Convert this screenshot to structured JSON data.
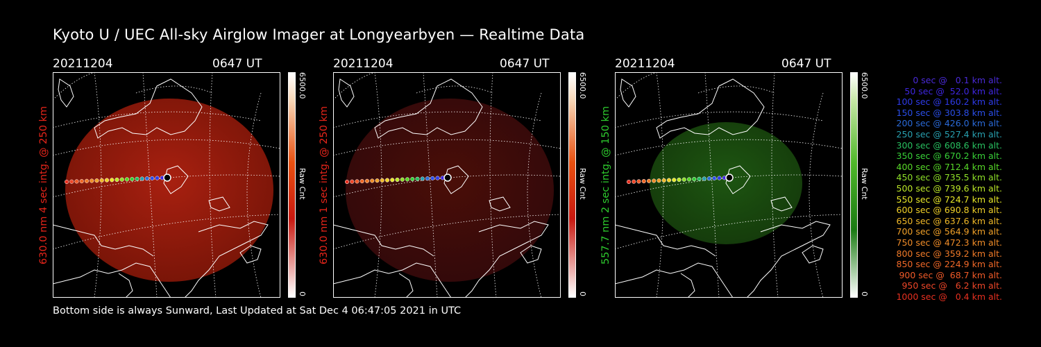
{
  "title": "Kyoto U / UEC All-sky Airglow Imager at Longyearbyen — Realtime Data",
  "footer": "Bottom side is always Sunward, Last Updated at Sat Dec  4 06:47:05 2021 in UTC",
  "panels": [
    {
      "date": "20211204",
      "time": "0647 UT",
      "ylabel": "630.0 nm 4 sec intg. @ 250 km",
      "label_color": "#e8251a",
      "cbar_max": "6500.0",
      "cbar_min": "0",
      "cbar_unit": "Raw Cnt",
      "colormap": "red"
    },
    {
      "date": "20211204",
      "time": "0647 UT",
      "ylabel": "630.0 nm 1 sec intg. @ 250 km",
      "label_color": "#e8251a",
      "cbar_max": "6500.0",
      "cbar_min": "0",
      "cbar_unit": "Raw Cnt",
      "colormap": "red"
    },
    {
      "date": "20211204",
      "time": "0647 UT",
      "ylabel": "557.7 nm 2 sec intg. @ 150 km",
      "label_color": "#2ecc2e",
      "cbar_max": "6500.0",
      "cbar_min": "0",
      "cbar_unit": "Raw Cnt",
      "colormap": "green"
    }
  ],
  "legend": [
    {
      "text": "   0 sec @   0.1 km alt.",
      "color": "#4a2ad8"
    },
    {
      "text": "  50 sec @  52.0 km alt.",
      "color": "#3e26e0"
    },
    {
      "text": " 100 sec @ 160.2 km alt.",
      "color": "#2e3ae8"
    },
    {
      "text": " 150 sec @ 303.8 km alt.",
      "color": "#2a4ee8"
    },
    {
      "text": " 200 sec @ 426.0 km alt.",
      "color": "#2a6ad8"
    },
    {
      "text": " 250 sec @ 527.4 km alt.",
      "color": "#28a0b0"
    },
    {
      "text": " 300 sec @ 608.6 km alt.",
      "color": "#28c060"
    },
    {
      "text": " 350 sec @ 670.2 km alt.",
      "color": "#38d038"
    },
    {
      "text": " 400 sec @ 712.4 km alt.",
      "color": "#58d828"
    },
    {
      "text": " 450 sec @ 735.5 km alt.",
      "color": "#8ee028"
    },
    {
      "text": " 500 sec @ 739.6 km alt.",
      "color": "#bce828"
    },
    {
      "text": " 550 sec @ 724.7 km alt.",
      "color": "#e8e828"
    },
    {
      "text": " 600 sec @ 690.8 km alt.",
      "color": "#f0d028"
    },
    {
      "text": " 650 sec @ 637.6 km alt.",
      "color": "#f0b828"
    },
    {
      "text": " 700 sec @ 564.9 km alt.",
      "color": "#f0a028"
    },
    {
      "text": " 750 sec @ 472.3 km alt.",
      "color": "#f08c28"
    },
    {
      "text": " 800 sec @ 359.2 km alt.",
      "color": "#f07a28"
    },
    {
      "text": " 850 sec @ 224.9 km alt.",
      "color": "#f06828"
    },
    {
      "text": " 900 sec @  68.7 km alt.",
      "color": "#f05a28"
    },
    {
      "text": " 950 sec @   6.2 km alt.",
      "color": "#ee4628"
    },
    {
      "text": "1000 sec @   0.4 km alt.",
      "color": "#e83020"
    }
  ]
}
